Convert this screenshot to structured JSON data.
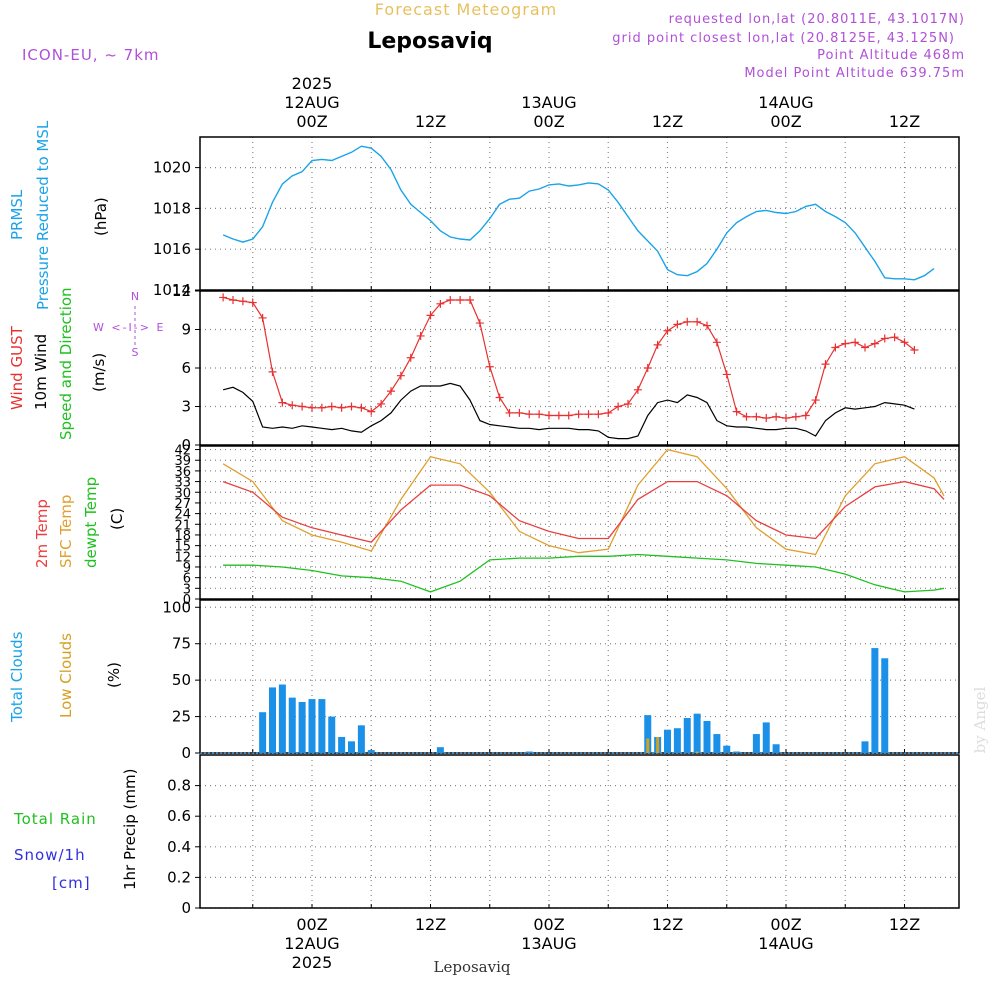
{
  "header": {
    "product": "Forecast Meteogram",
    "location": "Leposaviq",
    "model": "ICON-EU, ~ 7km",
    "requested": "requested lon,lat (20.8011E, 43.1017N)",
    "grid_point": "grid point closest lon,lat (20.8125E, 43.125N)",
    "point_altitude": "Point Altitude 468m",
    "model_altitude": "Model Point Altitude 639.75m",
    "footer_location": "Leposaviq",
    "credit": "by Angel"
  },
  "time_axis": {
    "top_labels": [
      {
        "h": 0,
        "lines": [
          "2025",
          "12AUG",
          "00Z"
        ]
      },
      {
        "h": 12,
        "lines": [
          "12Z"
        ]
      },
      {
        "h": 24,
        "lines": [
          "13AUG",
          "00Z"
        ]
      },
      {
        "h": 36,
        "lines": [
          "12Z"
        ]
      },
      {
        "h": 48,
        "lines": [
          "14AUG",
          "00Z"
        ]
      },
      {
        "h": 60,
        "lines": [
          "12Z"
        ]
      }
    ],
    "bottom_labels": [
      {
        "h": 0,
        "lines": [
          "00Z",
          "12AUG",
          "2025"
        ]
      },
      {
        "h": 12,
        "lines": [
          "12Z"
        ]
      },
      {
        "h": 24,
        "lines": [
          "00Z",
          "13AUG"
        ]
      },
      {
        "h": 36,
        "lines": [
          "12Z"
        ]
      },
      {
        "h": 48,
        "lines": [
          "00Z",
          "14AUG"
        ]
      },
      {
        "h": 60,
        "lines": [
          "12Z"
        ]
      }
    ]
  },
  "panels": {
    "pressure": {
      "title1": "PRMSL",
      "title2": "Pressure Reduced to MSL",
      "unit": "(hPa)"
    },
    "wind": {
      "title_gust": "Wind GUST",
      "title_wind": "10m Wind",
      "title_dir": "Speed and Direction",
      "unit": "(m/s)",
      "compass_we": "W <-I-> E",
      "compass_n": "N",
      "compass_s": "S"
    },
    "temp": {
      "t2m": "2m Temp",
      "sfc": "SFC Temp",
      "dewpt": "dewpt Temp",
      "unit": "(C)"
    },
    "clouds": {
      "total": "Total Clouds",
      "low": "Low Clouds",
      "unit": "(%)"
    },
    "precip": {
      "rain": "Total  Rain",
      "snow": "Snow/1h",
      "snow_unit": "[cm]",
      "axis": "1hr Precip (mm)"
    }
  },
  "colors": {
    "pressure": "#1aa3e8",
    "gust": "#e83030",
    "wind": "#000000",
    "t2m": "#e84040",
    "sfc": "#e0a030",
    "dewpt": "#20c020",
    "total_clouds": "#1a90e8",
    "low_clouds": "#d4a020",
    "rain": "#20c020",
    "snow": "#3030e0",
    "header_purple": "#b050d8",
    "product": "#e8c060"
  },
  "chart_data": [
    {
      "type": "line",
      "name": "pressure",
      "x_hours_from_12AUG_00Z": [
        -9,
        -8,
        -7,
        -6,
        -5,
        -4,
        -3,
        -2,
        -1,
        0,
        1,
        2,
        3,
        4,
        5,
        6,
        7,
        8,
        9,
        10,
        11,
        12,
        13,
        14,
        15,
        16,
        17,
        18,
        19,
        20,
        21,
        22,
        23,
        24,
        25,
        26,
        27,
        28,
        29,
        30,
        31,
        32,
        33,
        34,
        35,
        36,
        37,
        38,
        39,
        40,
        41,
        42,
        43,
        44,
        45,
        46,
        47,
        48,
        49,
        50,
        51,
        52,
        53,
        54,
        55,
        56,
        57,
        58,
        59,
        60,
        61,
        62,
        63,
        64
      ],
      "y": [
        1016.7,
        1016.5,
        1016.35,
        1016.5,
        1017.1,
        1018.3,
        1019.2,
        1019.6,
        1019.8,
        1020.35,
        1020.4,
        1020.35,
        1020.55,
        1020.75,
        1021.05,
        1020.95,
        1020.55,
        1019.9,
        1018.9,
        1018.2,
        1017.8,
        1017.4,
        1016.9,
        1016.6,
        1016.5,
        1016.45,
        1016.9,
        1017.5,
        1018.2,
        1018.45,
        1018.5,
        1018.85,
        1018.95,
        1019.15,
        1019.2,
        1019.1,
        1019.15,
        1019.25,
        1019.2,
        1018.9,
        1018.3,
        1017.6,
        1016.9,
        1016.4,
        1015.9,
        1015.0,
        1014.75,
        1014.7,
        1014.9,
        1015.3,
        1016.0,
        1016.8,
        1017.3,
        1017.6,
        1017.85,
        1017.9,
        1017.8,
        1017.75,
        1017.85,
        1018.1,
        1018.2,
        1017.85,
        1017.6,
        1017.3,
        1016.8,
        1016.1,
        1015.4,
        1014.6,
        1014.55,
        1014.55,
        1014.5,
        1014.7,
        1015.05
      ],
      "ylim": [
        1014,
        1021.5
      ],
      "yticks": [
        1014,
        1016,
        1018,
        1020
      ]
    },
    {
      "type": "line",
      "name": "wind_gust_and_wind",
      "x_hours_from_12AUG_00Z": [
        -9,
        -8,
        -7,
        -6,
        -5,
        -4,
        -3,
        -2,
        -1,
        0,
        1,
        2,
        3,
        4,
        5,
        6,
        7,
        8,
        9,
        10,
        11,
        12,
        13,
        14,
        15,
        16,
        17,
        18,
        19,
        20,
        21,
        22,
        23,
        24,
        25,
        26,
        27,
        28,
        29,
        30,
        31,
        32,
        33,
        34,
        35,
        36,
        37,
        38,
        39,
        40,
        41,
        42,
        43,
        44,
        45,
        46,
        47,
        48,
        49,
        50,
        51,
        52,
        53,
        54,
        55,
        56,
        57,
        58,
        59,
        60,
        61,
        62,
        63,
        64
      ],
      "gust": [
        11.5,
        11.3,
        11.2,
        11.1,
        9.9,
        5.7,
        3.3,
        3.1,
        3.0,
        2.9,
        2.9,
        3.0,
        2.9,
        3.0,
        2.9,
        2.6,
        3.2,
        4.2,
        5.4,
        6.8,
        8.5,
        10.1,
        11.0,
        11.3,
        11.3,
        11.3,
        9.5,
        6.1,
        3.7,
        2.5,
        2.5,
        2.4,
        2.4,
        2.3,
        2.3,
        2.3,
        2.4,
        2.4,
        2.4,
        2.5,
        3.0,
        3.2,
        4.3,
        6.0,
        7.8,
        8.9,
        9.4,
        9.6,
        9.6,
        9.3,
        8.0,
        5.5,
        2.6,
        2.2,
        2.2,
        2.1,
        2.2,
        2.1,
        2.2,
        2.3,
        3.5,
        6.3,
        7.6,
        7.9,
        8.0,
        7.6,
        7.9,
        8.3,
        8.4,
        8.0,
        7.4
      ],
      "wind": [
        4.3,
        4.5,
        4.1,
        3.4,
        1.4,
        1.3,
        1.4,
        1.3,
        1.5,
        1.4,
        1.3,
        1.2,
        1.3,
        1.1,
        1.0,
        1.5,
        1.9,
        2.5,
        3.5,
        4.2,
        4.6,
        4.6,
        4.6,
        4.8,
        4.6,
        3.5,
        1.9,
        1.6,
        1.5,
        1.4,
        1.3,
        1.3,
        1.2,
        1.3,
        1.3,
        1.3,
        1.2,
        1.2,
        1.1,
        0.6,
        0.5,
        0.5,
        0.7,
        2.3,
        3.3,
        3.5,
        3.3,
        3.9,
        3.7,
        3.3,
        1.9,
        1.5,
        1.4,
        1.4,
        1.3,
        1.2,
        1.2,
        1.3,
        1.3,
        1.1,
        0.7,
        1.9,
        2.5,
        2.9,
        2.8,
        2.9,
        3.0,
        3.3,
        3.2,
        3.1,
        2.8
      ],
      "ylim": [
        0,
        12
      ],
      "yticks": [
        0,
        3,
        6,
        9,
        12
      ]
    },
    {
      "type": "line",
      "name": "temperatures",
      "x_hours_from_12AUG_00Z": [
        -9,
        -6,
        -3,
        0,
        3,
        6,
        9,
        12,
        15,
        18,
        21,
        24,
        27,
        30,
        33,
        36,
        39,
        42,
        45,
        48,
        51,
        54,
        57,
        60,
        63,
        64
      ],
      "t2m": [
        33.0,
        30.0,
        23.0,
        20.0,
        18.0,
        16.0,
        25.0,
        32.0,
        32.0,
        29.0,
        22.0,
        19.0,
        17.0,
        17.0,
        28.0,
        33.0,
        33.0,
        29.0,
        22.0,
        18.0,
        17.0,
        26.0,
        31.5,
        33.0,
        31.0,
        28.0
      ],
      "sfc": [
        38.0,
        33.0,
        22.0,
        18.0,
        16.0,
        13.5,
        28.0,
        40.0,
        38.0,
        30.0,
        19.0,
        15.0,
        13.0,
        14.0,
        32.0,
        42.0,
        40.0,
        31.0,
        20.0,
        14.0,
        12.5,
        29.0,
        38.0,
        40.0,
        34.0,
        29.0
      ],
      "dewpt": [
        9.5,
        9.5,
        9.0,
        8.0,
        6.5,
        6.0,
        5.0,
        2.0,
        5.0,
        11.0,
        11.5,
        11.5,
        12.0,
        12.0,
        12.5,
        12.0,
        11.5,
        11.0,
        10.0,
        9.5,
        9.0,
        7.0,
        4.0,
        2.0,
        2.5,
        3.0
      ],
      "ylim": [
        0,
        43
      ],
      "yticks": [
        0,
        3,
        6,
        9,
        12,
        15,
        18,
        21,
        24,
        27,
        30,
        33,
        36,
        39,
        42
      ]
    },
    {
      "type": "bar",
      "name": "clouds",
      "x_hours_from_12AUG_00Z": [
        -5,
        -4,
        -3,
        -2,
        -1,
        0,
        1,
        2,
        3,
        4,
        5,
        6,
        13,
        22,
        34,
        35,
        36,
        37,
        38,
        39,
        40,
        41,
        42,
        43,
        45,
        46,
        47,
        56,
        57,
        58
      ],
      "total_clouds": [
        28,
        45,
        47,
        38,
        35,
        37,
        37,
        25,
        11,
        8,
        19,
        2,
        4,
        1,
        26,
        11,
        16,
        17,
        24,
        27,
        22,
        13,
        5,
        1,
        13,
        21,
        6,
        8,
        72,
        65
      ],
      "low_clouds": [
        0,
        0,
        0,
        0,
        0,
        0,
        0,
        0,
        0,
        0,
        0,
        0,
        0,
        0,
        10,
        11,
        0,
        0,
        0,
        1,
        0,
        0,
        0,
        0,
        0,
        0,
        0,
        0,
        0,
        0
      ],
      "ylim": [
        0,
        105
      ],
      "yticks": [
        0,
        25,
        50,
        75,
        100
      ]
    },
    {
      "type": "bar",
      "name": "precipitation",
      "values_note": "",
      "total_rain": [],
      "snow": [],
      "ylim": [
        0,
        1
      ],
      "yticks": [
        0,
        0.2,
        0.4,
        0.6,
        0.8
      ]
    }
  ]
}
